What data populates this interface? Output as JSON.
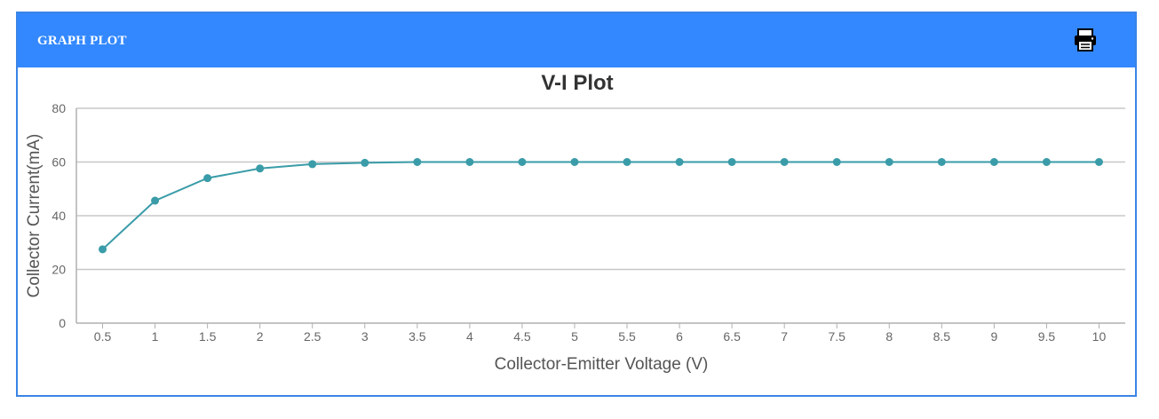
{
  "panel": {
    "title": "GRAPH PLOT",
    "print_icon": "printer-icon"
  },
  "colors": {
    "header": "#3388ff",
    "border": "#3a84e6",
    "series": "#3a9ca8",
    "grid": "#c8c8c8"
  },
  "chart_data": {
    "type": "line",
    "title": "V-I Plot",
    "xlabel": "Collector-Emitter Voltage (V)",
    "ylabel": "Collector Current(mA)",
    "ylim": [
      0,
      80
    ],
    "yticks": [
      "0",
      "20",
      "40",
      "60",
      "80"
    ],
    "categories": [
      "0.5",
      "1",
      "1.5",
      "2",
      "2.5",
      "3",
      "3.5",
      "4",
      "4.5",
      "5",
      "5.5",
      "6",
      "6.5",
      "7",
      "7.5",
      "8",
      "8.5",
      "9",
      "9.5",
      "10"
    ],
    "values": [
      27.5,
      45.6,
      54.0,
      57.6,
      59.2,
      59.7,
      60.0,
      60.0,
      60.0,
      60.0,
      60.0,
      60.0,
      60.0,
      60.0,
      60.0,
      60.0,
      60.0,
      60.0,
      60.0,
      60.0
    ],
    "grid": true,
    "legend": "none"
  }
}
